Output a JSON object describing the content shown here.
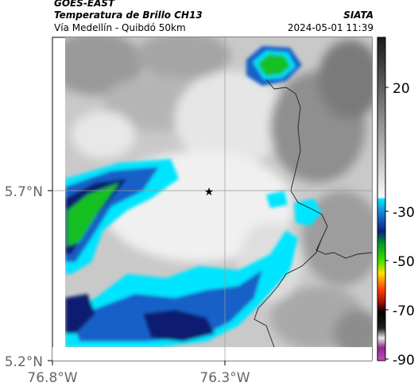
{
  "header": {
    "satellite": "GOES-EAST",
    "title": "Temperatura de Brillo CH13",
    "subtitle": "Vía Medellín - Quibdó 50km",
    "organization": "SIATA",
    "timestamp": "2024-05-01 11:39"
  },
  "map": {
    "lat_ticks": [
      "5.7°N",
      "5.2°N"
    ],
    "lon_ticks": [
      "76.8°W",
      "76.3°W"
    ],
    "marker_icon": "star-icon"
  },
  "colorbar": {
    "ticks": [
      "20",
      "-30",
      "-50",
      "-70",
      "-90"
    ],
    "range": [
      -95,
      35
    ],
    "colors": {
      "warm_dark": "#222222",
      "warm_light": "#f2f2f2",
      "cyan": "#00e5ff",
      "blue": "#1560c8",
      "navy": "#0a1a70",
      "green": "#18c020",
      "yellow": "#f0f000",
      "red": "#d01000",
      "black": "#000000",
      "magenta": "#b030b0"
    }
  }
}
